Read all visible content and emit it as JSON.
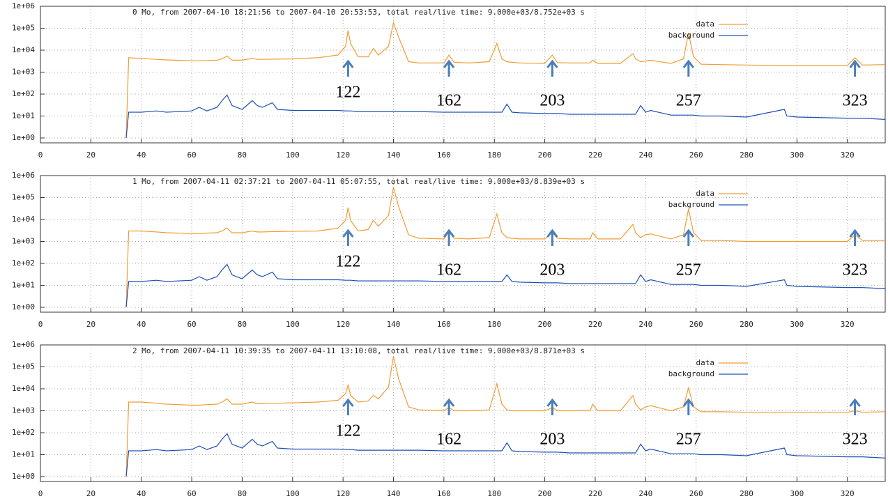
{
  "chart_data": [
    {
      "type": "line",
      "title": "0 Mo, from 2007-04-10 18:21:56 to 2007-04-10 20:53:53, total real/live time: 9.000e+03/8.752e+03 s",
      "x": [
        34,
        35,
        40,
        46,
        50,
        60,
        63,
        66,
        70,
        72,
        74,
        76,
        80,
        84,
        86,
        88,
        92,
        94,
        100,
        110,
        118,
        121,
        122,
        123,
        126,
        130,
        132,
        134,
        138,
        140,
        142,
        146,
        150,
        160,
        162,
        164,
        170,
        178,
        181,
        183,
        185,
        187,
        190,
        200,
        203,
        205,
        210,
        218,
        219,
        221,
        230,
        235,
        236,
        238,
        240,
        242,
        250,
        255,
        257,
        259,
        262,
        270,
        280,
        295,
        296,
        300,
        320,
        323,
        326,
        335
      ],
      "series": [
        {
          "name": "data",
          "color": "#f39c33",
          "values": [
            1,
            4500,
            4200,
            3800,
            3600,
            3300,
            3300,
            3400,
            3500,
            4000,
            5500,
            3500,
            3500,
            4200,
            3800,
            3800,
            3900,
            3900,
            4000,
            4500,
            6000,
            15000,
            80000,
            20000,
            5000,
            5000,
            12000,
            6000,
            15000,
            180000,
            40000,
            3000,
            2600,
            2600,
            6000,
            2800,
            2600,
            3000,
            20000,
            4000,
            3000,
            2800,
            2600,
            2500,
            6000,
            2700,
            2600,
            2600,
            3500,
            2500,
            2500,
            7000,
            4000,
            3000,
            3200,
            3500,
            2500,
            4000,
            60000,
            5000,
            2300,
            2200,
            2100,
            2000,
            2000,
            2000,
            2000,
            4500,
            2100,
            2200
          ]
        },
        {
          "name": "background",
          "color": "#1f4fb4",
          "values": [
            1,
            15,
            15,
            17,
            15,
            17,
            25,
            17,
            25,
            50,
            90,
            30,
            20,
            50,
            30,
            25,
            40,
            20,
            18,
            18,
            18,
            17,
            17,
            17,
            16,
            16,
            16,
            16,
            16,
            16,
            16,
            16,
            16,
            15,
            15,
            15,
            15,
            15,
            15,
            15,
            35,
            15,
            14,
            13,
            13,
            13,
            12,
            12,
            12,
            12,
            12,
            12,
            12,
            30,
            15,
            18,
            11,
            11,
            11,
            11,
            10,
            10,
            9,
            20,
            10,
            9,
            8,
            8,
            8,
            7
          ]
        }
      ],
      "xlim": [
        0,
        335
      ],
      "xticks": [
        0,
        20,
        40,
        60,
        80,
        100,
        120,
        140,
        160,
        180,
        200,
        220,
        240,
        260,
        280,
        300,
        320
      ],
      "ylim": [
        0.6,
        1000000
      ],
      "log_y": true,
      "yticks": [
        {
          "value": 1,
          "label": "1e+00"
        },
        {
          "value": 10,
          "label": "1e+01"
        },
        {
          "value": 100,
          "label": "1e+02"
        },
        {
          "value": 1000,
          "label": "1e+03"
        },
        {
          "value": 10000,
          "label": "1e+04"
        },
        {
          "value": 100000,
          "label": "1e+05"
        },
        {
          "value": 1000000,
          "label": "1e+06"
        }
      ],
      "grid": true,
      "legend": "upper right",
      "annotations": [
        122,
        162,
        203,
        257,
        323
      ]
    },
    {
      "type": "line",
      "title": "1 Mo, from 2007-04-11 02:37:21 to 2007-04-11 05:07:55, total real/live time: 9.000e+03/8.839e+03 s",
      "x": [
        34,
        35,
        40,
        46,
        50,
        60,
        63,
        66,
        70,
        72,
        74,
        76,
        80,
        84,
        86,
        88,
        92,
        94,
        100,
        110,
        118,
        121,
        122,
        123,
        126,
        130,
        132,
        134,
        138,
        140,
        142,
        146,
        150,
        160,
        162,
        164,
        170,
        178,
        181,
        183,
        185,
        187,
        190,
        200,
        203,
        205,
        210,
        218,
        219,
        221,
        230,
        235,
        236,
        238,
        240,
        242,
        250,
        255,
        257,
        259,
        262,
        270,
        280,
        295,
        296,
        300,
        320,
        323,
        326,
        335
      ],
      "series": [
        {
          "name": "data",
          "color": "#f39c33",
          "values": [
            1,
            3000,
            3000,
            2700,
            2500,
            2300,
            2300,
            2400,
            2500,
            3000,
            4000,
            2500,
            2500,
            3000,
            2700,
            2700,
            2800,
            2800,
            2900,
            3000,
            4000,
            9000,
            35000,
            9000,
            3000,
            3500,
            9000,
            5000,
            15000,
            300000,
            40000,
            2000,
            1400,
            1300,
            2800,
            1400,
            1300,
            1500,
            18000,
            2500,
            1500,
            1400,
            1300,
            1300,
            2500,
            1400,
            1300,
            1300,
            2500,
            1300,
            1300,
            6000,
            2500,
            1500,
            2000,
            2200,
            1300,
            2000,
            30000,
            2500,
            1100,
            1100,
            1000,
            1000,
            1000,
            1000,
            1000,
            2000,
            1100,
            1100
          ]
        },
        {
          "name": "background",
          "color": "#1f4fb4",
          "values": [
            1,
            15,
            15,
            17,
            15,
            17,
            25,
            17,
            25,
            50,
            90,
            30,
            20,
            50,
            30,
            25,
            40,
            20,
            18,
            18,
            18,
            17,
            17,
            17,
            16,
            16,
            16,
            16,
            16,
            16,
            16,
            16,
            16,
            15,
            15,
            15,
            15,
            15,
            15,
            15,
            30,
            15,
            14,
            13,
            13,
            13,
            12,
            12,
            12,
            12,
            12,
            12,
            12,
            30,
            15,
            18,
            11,
            11,
            11,
            11,
            10,
            10,
            9,
            18,
            10,
            9,
            8,
            8,
            8,
            7
          ]
        }
      ],
      "xlim": [
        0,
        335
      ],
      "xticks": [
        0,
        20,
        40,
        60,
        80,
        100,
        120,
        140,
        160,
        180,
        200,
        220,
        240,
        260,
        280,
        300,
        320
      ],
      "ylim": [
        0.6,
        1000000
      ],
      "log_y": true,
      "yticks": [
        {
          "value": 1,
          "label": "1e+00"
        },
        {
          "value": 10,
          "label": "1e+01"
        },
        {
          "value": 100,
          "label": "1e+02"
        },
        {
          "value": 1000,
          "label": "1e+03"
        },
        {
          "value": 10000,
          "label": "1e+04"
        },
        {
          "value": 100000,
          "label": "1e+05"
        },
        {
          "value": 1000000,
          "label": "1e+06"
        }
      ],
      "grid": true,
      "legend": "upper right",
      "annotations": [
        122,
        162,
        203,
        257,
        323
      ]
    },
    {
      "type": "line",
      "title": "2 Mo, from 2007-04-11 10:39:35 to 2007-04-11 13:10:08, total real/live time: 9.000e+03/8.871e+03 s",
      "x": [
        34,
        35,
        40,
        46,
        50,
        60,
        63,
        66,
        70,
        72,
        74,
        76,
        80,
        84,
        86,
        88,
        92,
        94,
        100,
        110,
        118,
        121,
        122,
        123,
        126,
        130,
        132,
        134,
        138,
        140,
        142,
        146,
        150,
        160,
        162,
        164,
        170,
        178,
        181,
        183,
        185,
        187,
        190,
        200,
        203,
        205,
        210,
        218,
        219,
        221,
        230,
        235,
        236,
        238,
        240,
        242,
        250,
        255,
        257,
        259,
        262,
        270,
        280,
        295,
        296,
        300,
        320,
        323,
        326,
        335
      ],
      "series": [
        {
          "name": "data",
          "color": "#f39c33",
          "values": [
            1,
            2500,
            2500,
            2200,
            2000,
            1800,
            1800,
            1900,
            2000,
            2500,
            3500,
            2000,
            2000,
            2500,
            2100,
            2100,
            2200,
            2200,
            2300,
            2500,
            3000,
            6000,
            15000,
            5000,
            2500,
            2800,
            5000,
            3500,
            12000,
            300000,
            30000,
            1500,
            1100,
            1000,
            1400,
            1000,
            1000,
            1100,
            17000,
            2000,
            1100,
            1000,
            1000,
            1000,
            1400,
            1000,
            1000,
            1000,
            2000,
            1000,
            1000,
            5000,
            2000,
            1100,
            1500,
            1700,
            1000,
            1500,
            11000,
            1500,
            900,
            900,
            850,
            850,
            850,
            850,
            850,
            1000,
            850,
            900
          ]
        },
        {
          "name": "background",
          "color": "#1f4fb4",
          "values": [
            1,
            15,
            15,
            17,
            15,
            17,
            25,
            17,
            25,
            50,
            90,
            30,
            20,
            50,
            30,
            25,
            40,
            20,
            18,
            18,
            18,
            17,
            17,
            17,
            16,
            16,
            16,
            16,
            16,
            16,
            16,
            16,
            16,
            15,
            15,
            15,
            15,
            15,
            15,
            15,
            35,
            15,
            14,
            13,
            13,
            13,
            12,
            12,
            12,
            12,
            12,
            12,
            12,
            30,
            15,
            18,
            11,
            11,
            11,
            11,
            10,
            10,
            9,
            20,
            10,
            9,
            8,
            8,
            8,
            7
          ]
        }
      ],
      "xlim": [
        0,
        335
      ],
      "xticks": [
        0,
        20,
        40,
        60,
        80,
        100,
        120,
        140,
        160,
        180,
        200,
        220,
        240,
        260,
        280,
        300,
        320
      ],
      "ylim": [
        0.6,
        1000000
      ],
      "log_y": true,
      "yticks": [
        {
          "value": 1,
          "label": "1e+00"
        },
        {
          "value": 10,
          "label": "1e+01"
        },
        {
          "value": 100,
          "label": "1e+02"
        },
        {
          "value": 1000,
          "label": "1e+03"
        },
        {
          "value": 10000,
          "label": "1e+04"
        },
        {
          "value": 100000,
          "label": "1e+05"
        },
        {
          "value": 1000000,
          "label": "1e+06"
        }
      ],
      "grid": true,
      "legend": "upper right",
      "annotations": [
        122,
        162,
        203,
        257,
        323
      ]
    }
  ]
}
